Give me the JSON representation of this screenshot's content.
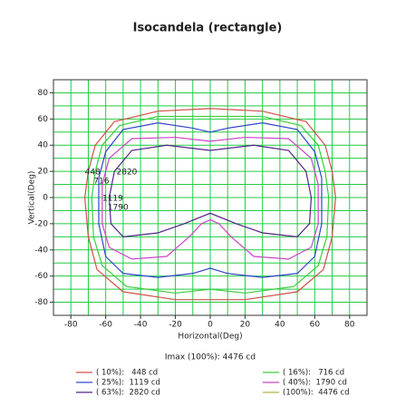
{
  "chart_data": {
    "type": "contour",
    "title": "Isocandela (rectangle)",
    "x_label": "Horizontal(Deg)",
    "y_label": "Vertical(Deg)",
    "note": "Imax (100%): 4476 cd",
    "xlim": [
      -90,
      90
    ],
    "ylim": [
      -90,
      90
    ],
    "xticks": [
      -80,
      -60,
      -40,
      -20,
      0,
      20,
      40,
      60,
      80
    ],
    "yticks": [
      -80,
      -60,
      -40,
      -20,
      0,
      20,
      40,
      60,
      80
    ],
    "grid": [
      -90,
      -80,
      -70,
      -60,
      -50,
      -40,
      -30,
      -20,
      -10,
      0,
      10,
      20,
      30,
      40,
      50,
      60,
      70,
      80,
      90
    ],
    "grid_color": "#22cc44",
    "series": [
      {
        "name": "( 10%):   448 cd",
        "label": "448",
        "color": "#d0504a",
        "x": [
          0,
          30,
          55,
          66,
          70,
          72,
          70,
          65,
          50,
          20,
          0,
          -20,
          -50,
          -65,
          -70,
          -72,
          -70,
          -66,
          -55,
          -30,
          0
        ],
        "y": [
          68,
          66,
          58,
          40,
          20,
          0,
          -30,
          -55,
          -72,
          -78,
          -78,
          -78,
          -72,
          -55,
          -30,
          0,
          20,
          40,
          58,
          66,
          68
        ]
      },
      {
        "name": "( 16%):   716 cd",
        "label": "716",
        "color": "#3ccc3c",
        "x": [
          0,
          30,
          52,
          62,
          66,
          68,
          67,
          62,
          48,
          20,
          0,
          -20,
          -48,
          -62,
          -67,
          -68,
          -66,
          -62,
          -52,
          -30,
          0
        ],
        "y": [
          62,
          62,
          55,
          40,
          20,
          0,
          -30,
          -52,
          -68,
          -73,
          -70,
          -73,
          -68,
          -52,
          -30,
          0,
          20,
          40,
          55,
          62,
          62
        ]
      },
      {
        "name": "( 25%):  1119 cd",
        "label": "1119",
        "color": "#3344cc",
        "x": [
          0,
          10,
          30,
          50,
          60,
          64,
          64,
          60,
          50,
          30,
          10,
          0,
          -10,
          -30,
          -50,
          -60,
          -64,
          -64,
          -60,
          -50,
          -30,
          -10,
          0
        ],
        "y": [
          50,
          53,
          57,
          52,
          35,
          15,
          -20,
          -45,
          -58,
          -61,
          -58,
          -54,
          -58,
          -61,
          -58,
          -45,
          -20,
          15,
          35,
          52,
          57,
          53,
          50
        ]
      },
      {
        "name": "( 40%):  1790 cd",
        "label": "1790",
        "color": "#cc44cc",
        "x": [
          0,
          20,
          45,
          58,
          62,
          62,
          58,
          45,
          25,
          12,
          5,
          0,
          -5,
          -12,
          -25,
          -45,
          -58,
          -62,
          -62,
          -58,
          -45,
          -20,
          0
        ],
        "y": [
          43,
          46,
          45,
          30,
          10,
          -20,
          -38,
          -47,
          -45,
          -30,
          -20,
          -17,
          -20,
          -30,
          -45,
          -47,
          -38,
          -20,
          10,
          30,
          45,
          46,
          43
        ]
      },
      {
        "name": "( 63%):  2820 cd",
        "label": "2820",
        "color": "#552288",
        "x": [
          0,
          25,
          45,
          55,
          58,
          57,
          50,
          30,
          15,
          0,
          -15,
          -30,
          -50,
          -57,
          -58,
          -55,
          -45,
          -25,
          0
        ],
        "y": [
          36,
          40,
          36,
          20,
          0,
          -20,
          -30,
          -27,
          -20,
          -12,
          -20,
          -27,
          -30,
          -20,
          0,
          20,
          36,
          40,
          36
        ]
      },
      {
        "name": "(100%):  4476 cd",
        "color": "#b8b040",
        "x": [],
        "y": []
      }
    ]
  }
}
